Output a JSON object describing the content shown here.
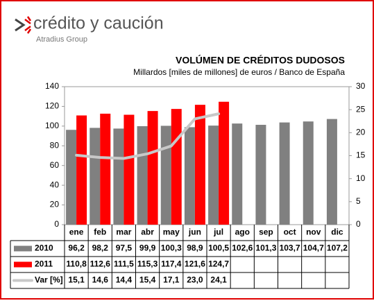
{
  "brand": {
    "name": "crédito y caución",
    "tagline": "Atradius Group"
  },
  "chart_data": {
    "type": "bar",
    "title": "VOLÚMEN DE CRÉDITOS DUDOSOS",
    "subtitle": "Millardos [miles de millones] de euros / Banco de España",
    "categories": [
      "ene",
      "feb",
      "mar",
      "abr",
      "may",
      "jun",
      "jul",
      "ago",
      "sep",
      "oct",
      "nov",
      "dic"
    ],
    "series": [
      {
        "name": "2010",
        "color": "#808080",
        "values": [
          96.2,
          98.2,
          97.5,
          99.9,
          100.3,
          98.9,
          100.5,
          102.6,
          101.3,
          103.7,
          104.7,
          107.2
        ],
        "value_labels": [
          "96,2",
          "98,2",
          "97,5",
          "99,9",
          "100,3",
          "98,9",
          "100,5",
          "102,6",
          "101,3",
          "103,7",
          "104,7",
          "107,2"
        ]
      },
      {
        "name": "2011",
        "color": "#ff0000",
        "values": [
          110.8,
          112.6,
          111.5,
          115.3,
          117.4,
          121.6,
          124.7,
          null,
          null,
          null,
          null,
          null
        ],
        "value_labels": [
          "110,8",
          "112,6",
          "111,5",
          "115,3",
          "117,4",
          "121,6",
          "124,7",
          null,
          null,
          null,
          null,
          null
        ]
      },
      {
        "name": "Var [%]",
        "color": "#c8c8c8",
        "type": "line",
        "axis": "y2",
        "values": [
          15.1,
          14.6,
          14.4,
          15.4,
          17.1,
          23.0,
          24.1,
          null,
          null,
          null,
          null,
          null
        ],
        "value_labels": [
          "15,1",
          "14,6",
          "14,4",
          "15,4",
          "17,1",
          "23,0",
          "24,1",
          null,
          null,
          null,
          null,
          null
        ]
      }
    ],
    "ylim": [
      0,
      140
    ],
    "yticks": [
      0,
      20,
      40,
      60,
      80,
      100,
      120,
      140
    ],
    "y2lim": [
      0,
      30
    ],
    "y2ticks": [
      0,
      5,
      10,
      15,
      20,
      25,
      30
    ],
    "grid": false
  }
}
